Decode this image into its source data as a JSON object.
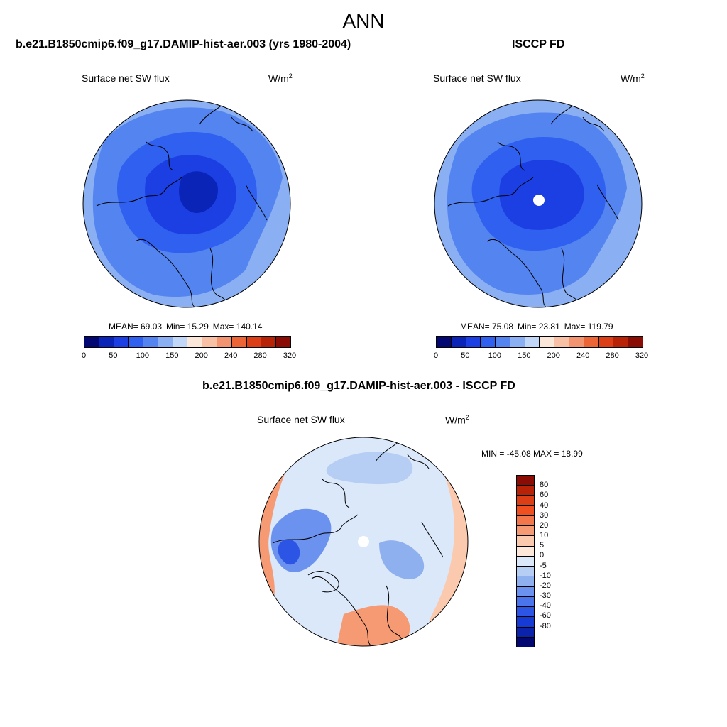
{
  "figure_title": "ANN",
  "panels": [
    {
      "title": "b.e21.B1850cmip6.f09_g17.DAMIP-hist-aer.003 (yrs 1980-2004)",
      "variable": "Surface net SW flux",
      "units_base": "W/m",
      "units_exp": "2",
      "stats": {
        "mean": "MEAN=  69.03",
        "min": "Min=  15.29",
        "max": "Max= 140.14"
      }
    },
    {
      "title": "ISCCP FD",
      "variable": "Surface net SW flux",
      "units_base": "W/m",
      "units_exp": "2",
      "stats": {
        "mean": "MEAN=  75.08",
        "min": "Min=  23.81",
        "max": "Max= 119.79"
      }
    },
    {
      "title": "b.e21.B1850cmip6.f09_g17.DAMIP-hist-aer.003 - ISCCP FD",
      "variable": "Surface net SW flux",
      "units_base": "W/m",
      "units_exp": "2",
      "stats_text": "MIN = -45.08 MAX =  18.99"
    }
  ],
  "colorbar_top": {
    "colors": [
      "#030772",
      "#0a24b8",
      "#1c3fe3",
      "#3060f0",
      "#5384f0",
      "#8aaff2",
      "#c2d7f7",
      "#fbe6da",
      "#f8c1a6",
      "#f39470",
      "#ec6537",
      "#dc3e16",
      "#b82308",
      "#8b0c04"
    ],
    "tick_labels": [
      "0",
      "50",
      "100",
      "150",
      "200",
      "240",
      "280",
      "320"
    ]
  },
  "colorbar_diff": {
    "colors_top_to_bottom": [
      "#8b0c04",
      "#b82308",
      "#dc3e16",
      "#f0501f",
      "#f3774a",
      "#f69a73",
      "#fbc9ae",
      "#fce7d9",
      "#dbe8fa",
      "#b6cdf4",
      "#8fb0ef",
      "#6b92ee",
      "#4a74ec",
      "#2c55e6",
      "#163ad4",
      "#0b22aa",
      "#030772"
    ],
    "tick_labels": [
      "80",
      "60",
      "40",
      "30",
      "20",
      "10",
      "5",
      "0",
      "-5",
      "-10",
      "-20",
      "-30",
      "-40",
      "-60",
      "-80"
    ]
  },
  "colors": {
    "map_outline": "#000000",
    "land_outline": "#000000"
  }
}
